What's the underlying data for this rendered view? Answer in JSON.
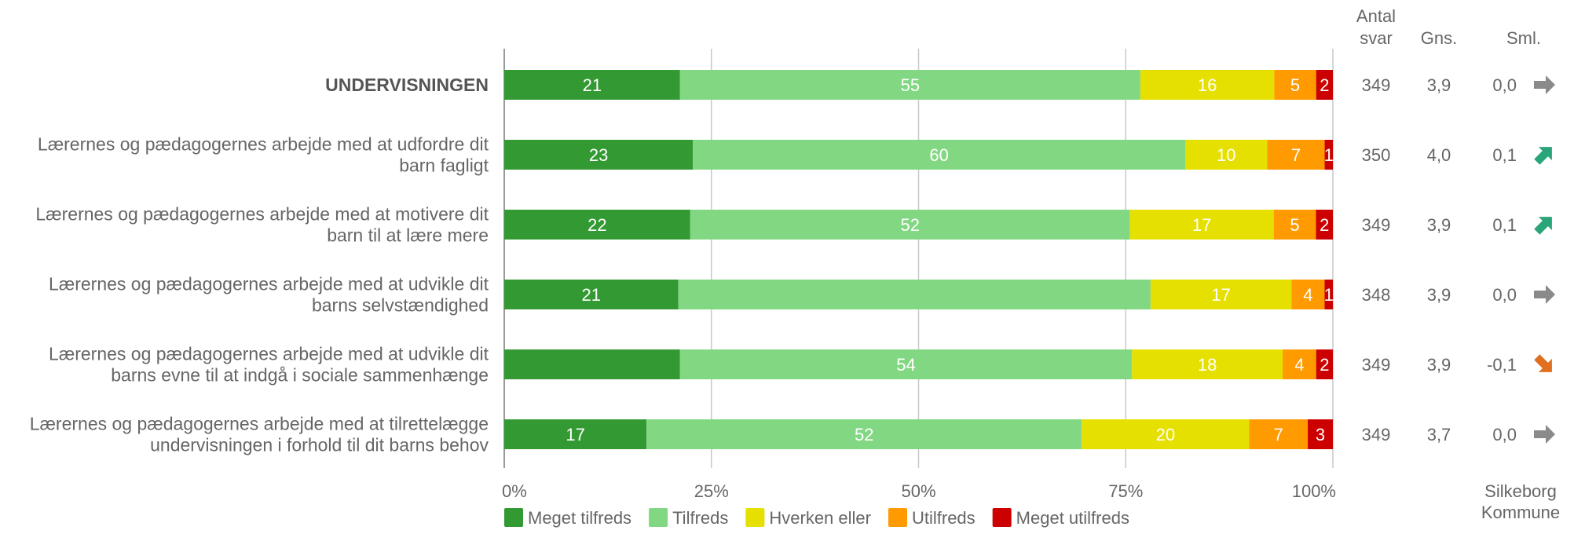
{
  "chart_data": {
    "type": "bar",
    "stacked": true,
    "orientation": "horizontal",
    "title": "",
    "xlabel": "",
    "ylabel": "",
    "xlim": [
      0,
      100
    ],
    "grid": true,
    "legend_position": "bottom",
    "x_ticks": [
      "0%",
      "25%",
      "50%",
      "75%",
      "100%"
    ],
    "categories": [
      {
        "lines": [
          "UNDERVISNINGEN"
        ],
        "bold": true
      },
      {
        "lines": [
          "Lærernes og pædagogernes arbejde med at udfordre dit",
          "barn fagligt"
        ],
        "bold": false
      },
      {
        "lines": [
          "Lærernes og pædagogernes arbejde med at motivere dit",
          "barn til at lære mere"
        ],
        "bold": false
      },
      {
        "lines": [
          "Lærernes og pædagogernes arbejde med at udvikle dit",
          "barns selvstændighed"
        ],
        "bold": false
      },
      {
        "lines": [
          "Lærernes og pædagogernes arbejde med at udvikle dit",
          "barns evne til at indgå i sociale sammenhænge"
        ],
        "bold": false
      },
      {
        "lines": [
          "Lærernes og pædagogernes arbejde med at tilrettelægge",
          "undervisningen i forhold til dit barns behov"
        ],
        "bold": false
      }
    ],
    "series": [
      {
        "name": "Meget tilfreds",
        "color": "#339933",
        "values": [
          21,
          23,
          22,
          21,
          21,
          17
        ]
      },
      {
        "name": "Tilfreds",
        "color": "#82d882",
        "values": [
          55,
          60,
          52,
          57,
          54,
          52
        ]
      },
      {
        "name": "Hverken eller",
        "color": "#e5e000",
        "values": [
          16,
          10,
          17,
          17,
          18,
          20
        ]
      },
      {
        "name": "Utilfreds",
        "color": "#ff9a00",
        "values": [
          5,
          7,
          5,
          4,
          4,
          7
        ]
      },
      {
        "name": "Meget utilfreds",
        "color": "#cc0000",
        "values": [
          2,
          1,
          2,
          1,
          2,
          3
        ]
      }
    ],
    "hidden_value_labels": [
      [
        3,
        1
      ],
      [
        4,
        0
      ]
    ],
    "label_colors": {
      "Hverken eller": "#ffffff"
    },
    "columns": {
      "headers": {
        "antal": [
          "Antal",
          "svar"
        ],
        "gns": [
          "Gns."
        ],
        "sml": [
          "Sml."
        ]
      },
      "antal_svar": [
        "349",
        "350",
        "349",
        "348",
        "349",
        "349"
      ],
      "gns": [
        "3,9",
        "4,0",
        "3,9",
        "3,9",
        "3,9",
        "3,7"
      ],
      "sml": [
        "0,0",
        "0,1",
        "0,1",
        "0,0",
        "-0,1",
        "0,0"
      ],
      "arrows": [
        "right",
        "up",
        "up",
        "right",
        "down",
        "right"
      ],
      "arrow_colors": {
        "right": "#8a8a8a",
        "up": "#2aa57a",
        "down": "#e07020"
      },
      "footer": [
        "Silkeborg",
        "Kommune"
      ]
    }
  }
}
